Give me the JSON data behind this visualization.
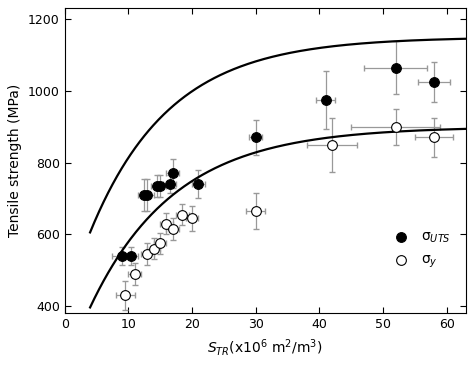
{
  "title": "",
  "xlabel": "$S_{TR}$(x10$^6$ m$^2$/m$^3$)",
  "ylabel": "Tensile strength (MPa)",
  "xlim": [
    0,
    63
  ],
  "ylim": [
    380,
    1230
  ],
  "xticks": [
    0,
    10,
    20,
    30,
    40,
    50,
    60
  ],
  "yticks": [
    400,
    600,
    800,
    1000,
    1200
  ],
  "uts_x": [
    9.0,
    10.5,
    12.5,
    13.0,
    14.5,
    15.0,
    16.5,
    17.0,
    21.0,
    30.0,
    41.0,
    52.0,
    58.0
  ],
  "uts_y": [
    540,
    540,
    710,
    710,
    735,
    735,
    740,
    770,
    740,
    870,
    975,
    1065,
    1025
  ],
  "uts_xerr": [
    1.5,
    1.0,
    1.0,
    1.0,
    1.0,
    1.0,
    1.0,
    1.0,
    1.0,
    1.0,
    1.5,
    5.0,
    2.5
  ],
  "uts_yerr": [
    25,
    25,
    45,
    45,
    30,
    30,
    25,
    40,
    40,
    50,
    80,
    75,
    55
  ],
  "sy_x": [
    9.5,
    11.0,
    13.0,
    14.0,
    15.0,
    16.0,
    17.0,
    18.5,
    20.0,
    30.0,
    42.0,
    52.0,
    58.0
  ],
  "sy_y": [
    430,
    490,
    545,
    560,
    575,
    630,
    615,
    655,
    645,
    665,
    850,
    900,
    870
  ],
  "sy_xerr": [
    1.5,
    1.0,
    1.0,
    1.0,
    1.0,
    1.0,
    1.0,
    1.0,
    1.0,
    1.5,
    4.0,
    7.0,
    3.0
  ],
  "sy_yerr": [
    40,
    30,
    30,
    30,
    30,
    30,
    30,
    30,
    35,
    50,
    75,
    50,
    55
  ],
  "A_uts": 750,
  "k_uts": 0.08,
  "B_uts": 400,
  "A_sy": 680,
  "k_sy": 0.075,
  "B_sy": 220,
  "marker_size": 7,
  "errorbar_color": "#999999",
  "line_color": "#000000",
  "marker_color_uts": "#000000",
  "marker_color_sy": "#ffffff",
  "marker_edge_color": "#000000",
  "legend_label_uts": "σ$_{UTS}$",
  "legend_label_sy": "σ$_y$",
  "background_color": "#ffffff"
}
